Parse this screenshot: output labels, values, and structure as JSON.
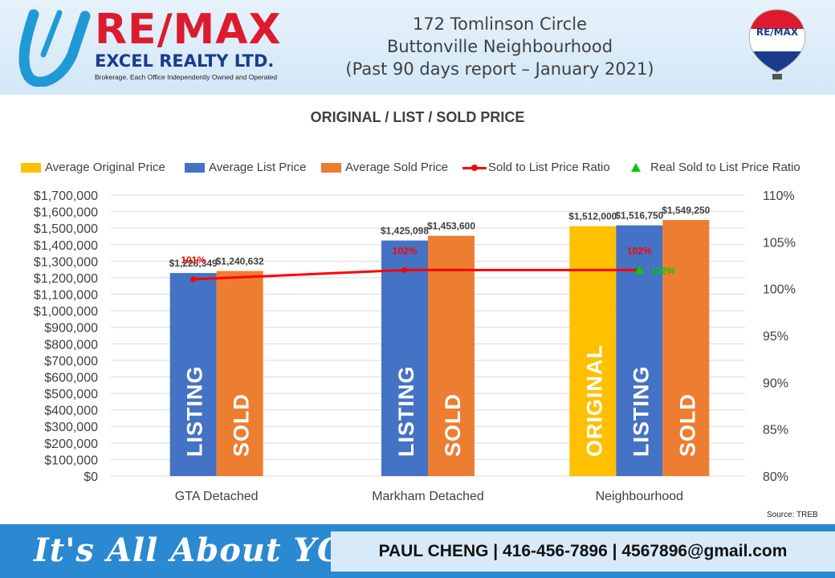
{
  "header": {
    "logo_remax": "RE/MAX",
    "logo_excel": "EXCEL REALTY LTD.",
    "logo_tagline": "Brokerage. Each Office Independently Owned and Operated",
    "title_line1": "172 Tomlinson Circle",
    "title_line2": "Buttonville Neighbourhood",
    "title_line3": "(Past 90 days report – January 2021)",
    "balloon_text": "RE/MAX"
  },
  "colors": {
    "original": "#ffc000",
    "list": "#4472c4",
    "sold": "#ed7d31",
    "ratio_line": "#ff0000",
    "real_ratio": "#00cc00"
  },
  "legend": {
    "original": "Average Original Price",
    "list": "Average List Price",
    "sold": "Average Sold Price",
    "ratio": "Sold to List Price Ratio",
    "real_ratio": "Real Sold to List Price Ratio"
  },
  "chart_data": {
    "type": "bar",
    "title": "ORIGINAL / LIST / SOLD PRICE",
    "categories": [
      "GTA  Detached",
      "Markham Detached",
      "Neighbourhood"
    ],
    "series": [
      {
        "name": "Average Original Price",
        "values": [
          null,
          null,
          1512000
        ],
        "labels": [
          "",
          "",
          "$1,512,000"
        ],
        "bar_text": [
          "",
          "",
          "ORIGINAL"
        ]
      },
      {
        "name": "Average List Price",
        "values": [
          1228349,
          1425098,
          1516750
        ],
        "labels": [
          "$1,228,349",
          "$1,425,098",
          "$1,516,750"
        ],
        "bar_text": [
          "LISTING",
          "LISTING",
          "LISTING"
        ]
      },
      {
        "name": "Average Sold Price",
        "values": [
          1240632,
          1453600,
          1549250
        ],
        "labels": [
          "$1,240,632",
          "$1,453,600",
          "$1,549,250"
        ],
        "bar_text": [
          "SOLD",
          "SOLD",
          "SOLD"
        ]
      }
    ],
    "line_series": [
      {
        "name": "Sold to List Price Ratio",
        "values": [
          101,
          102,
          102
        ],
        "labels": [
          "101%",
          "102%",
          "102%"
        ],
        "axis": "right"
      },
      {
        "name": "Real Sold to List Price Ratio",
        "values": [
          null,
          null,
          102
        ],
        "labels": [
          "",
          "",
          "102%"
        ],
        "axis": "right"
      }
    ],
    "y_left": {
      "min": 0,
      "max": 1700000,
      "step": 100000,
      "tick_labels": [
        "$0",
        "$100,000",
        "$200,000",
        "$300,000",
        "$400,000",
        "$500,000",
        "$600,000",
        "$700,000",
        "$800,000",
        "$900,000",
        "$1,000,000",
        "$1,100,000",
        "$1,200,000",
        "$1,300,000",
        "$1,400,000",
        "$1,500,000",
        "$1,600,000",
        "$1,700,000"
      ]
    },
    "y_right": {
      "min": 80,
      "max": 110,
      "step": 5,
      "tick_labels": [
        "80%",
        "85%",
        "90%",
        "95%",
        "100%",
        "105%",
        "110%"
      ]
    },
    "grid": true,
    "legend_position": "top"
  },
  "source": "Source: TREB",
  "footer": {
    "slogan": "It's All About YOU",
    "contact": "PAUL CHENG | 416-456-7896 | 4567896@gmail.com"
  }
}
